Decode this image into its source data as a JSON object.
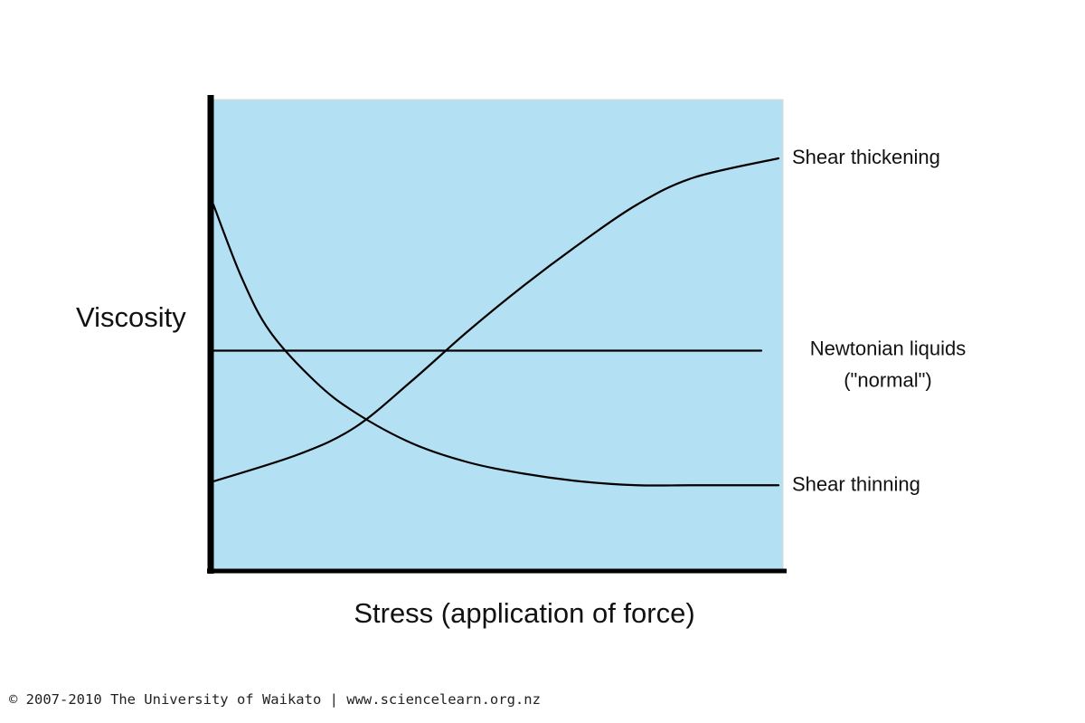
{
  "chart_data": {
    "type": "line",
    "title": "",
    "xlabel": "Stress (application of force)",
    "ylabel": "Viscosity",
    "x_ticks": [],
    "y_ticks": [],
    "xlim": [
      0,
      100
    ],
    "ylim": [
      0,
      100
    ],
    "grid": false,
    "legend": "none",
    "plot_background": "#b3e0f2",
    "line_color": "#000000",
    "series": [
      {
        "name": "Shear thickening",
        "points": [
          [
            0,
            16
          ],
          [
            15,
            23
          ],
          [
            25,
            30
          ],
          [
            35,
            42
          ],
          [
            45,
            55
          ],
          [
            55,
            67
          ],
          [
            65,
            78
          ],
          [
            75,
            88
          ],
          [
            85,
            95
          ],
          [
            100,
            100
          ]
        ]
      },
      {
        "name": "Newtonian liquids",
        "name_line2": "(\"normal\")",
        "points": [
          [
            0,
            50
          ],
          [
            100,
            50
          ]
        ]
      },
      {
        "name": "Shear thinning",
        "points": [
          [
            0,
            88
          ],
          [
            5,
            69
          ],
          [
            10,
            55
          ],
          [
            18,
            42
          ],
          [
            25,
            34
          ],
          [
            35,
            26
          ],
          [
            45,
            21
          ],
          [
            55,
            18
          ],
          [
            65,
            16
          ],
          [
            75,
            15
          ],
          [
            85,
            15
          ],
          [
            100,
            15
          ]
        ]
      }
    ]
  },
  "copyright": "© 2007-2010 The University of Waikato | www.sciencelearn.org.nz"
}
